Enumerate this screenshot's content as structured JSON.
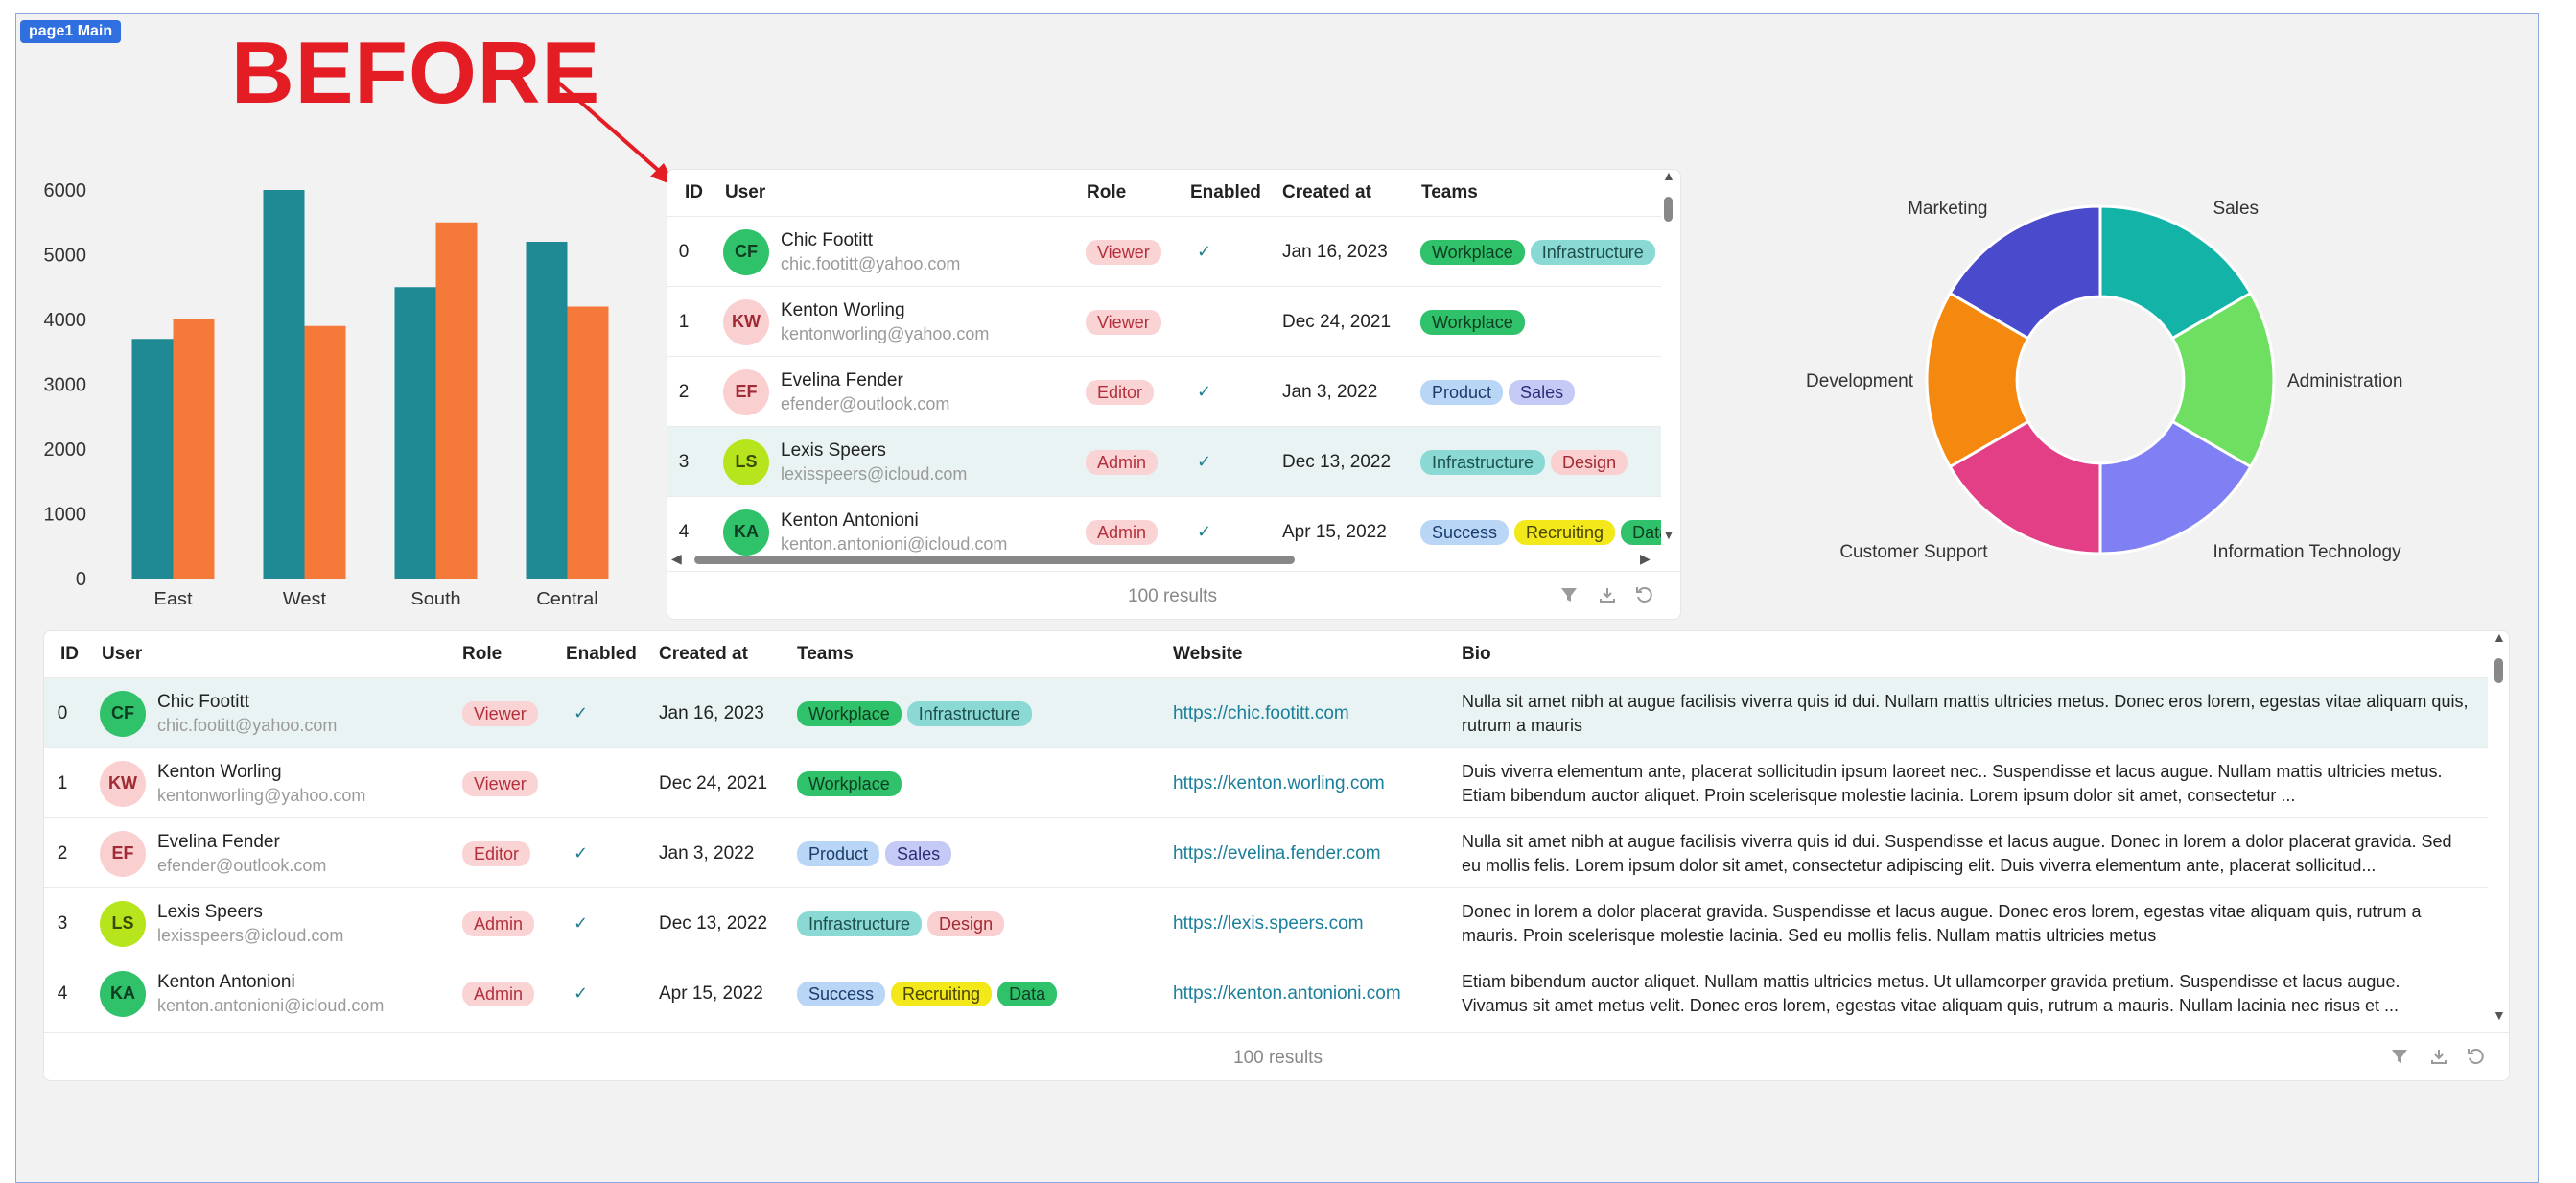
{
  "page_tag": "page1 Main",
  "annotation": {
    "text": "BEFORE",
    "color": "#e41c24"
  },
  "bar_chart": {
    "chart_data": {
      "type": "bar",
      "categories": [
        "East",
        "West",
        "South",
        "Central"
      ],
      "series": [
        {
          "values": [
            3700,
            6000,
            4500,
            5200
          ],
          "color": "#1f8a94"
        },
        {
          "values": [
            4000,
            3900,
            5500,
            4200
          ],
          "color": "#f57a3a"
        }
      ],
      "ylim": [
        0,
        6000
      ],
      "yticks": [
        0,
        1000,
        2000,
        3000,
        4000,
        5000,
        6000
      ]
    },
    "y_tick_labels": [
      "0",
      "1000",
      "2000",
      "3000",
      "4000",
      "5000",
      "6000"
    ]
  },
  "donut_chart": {
    "chart_data": {
      "type": "pie",
      "categories": [
        "Sales",
        "Administration",
        "Information Technology",
        "Customer Support",
        "Development",
        "Marketing"
      ],
      "values": [
        1,
        1,
        1,
        1,
        1,
        1
      ],
      "colors": [
        "#14b3a8",
        "#6fdf62",
        "#8080f4",
        "#e33f86",
        "#f5880f",
        "#4a4acc"
      ],
      "hole": 0.48
    }
  },
  "small_grid": {
    "headers": {
      "id": "ID",
      "user": "User",
      "role": "Role",
      "enabled": "Enabled",
      "created": "Created at",
      "teams": "Teams"
    },
    "footer": "100 results"
  },
  "large_grid": {
    "headers": {
      "id": "ID",
      "user": "User",
      "role": "Role",
      "enabled": "Enabled",
      "created": "Created at",
      "teams": "Teams",
      "website": "Website",
      "bio": "Bio"
    },
    "footer": "100 results"
  },
  "rows": [
    {
      "id": "0",
      "initials": "CF",
      "avatar_bg": "#2fc26a",
      "avatar_fg": "#0f3d22",
      "name": "Chic Footitt",
      "email": "chic.footitt@yahoo.com",
      "role": "Viewer",
      "enabled": true,
      "enabled_icon": "✓",
      "created": "Jan 16, 2023",
      "teams": [
        {
          "label": "Workplace",
          "bg": "#2fc26a",
          "fg": "#0f3d22"
        },
        {
          "label": "Infrastructure",
          "bg": "#8ad9d5",
          "fg": "#1d4f4c"
        }
      ],
      "website": "https://chic.footitt.com",
      "bio": "Nulla sit amet nibh at augue facilisis viverra quis id dui. Nullam mattis ultricies metus. Donec eros lorem, egestas vitae aliquam quis, rutrum a mauris"
    },
    {
      "id": "1",
      "initials": "KW",
      "avatar_bg": "#f9cfd0",
      "avatar_fg": "#a12b35",
      "name": "Kenton Worling",
      "email": "kentonworling@yahoo.com",
      "role": "Viewer",
      "enabled": false,
      "enabled_icon": "",
      "created": "Dec 24, 2021",
      "teams": [
        {
          "label": "Workplace",
          "bg": "#2fc26a",
          "fg": "#0f3d22"
        }
      ],
      "website": "https://kenton.worling.com",
      "bio": "Duis viverra elementum ante, placerat sollicitudin ipsum laoreet nec.. Suspendisse et lacus augue. Nullam mattis ultricies metus. Etiam bibendum auctor aliquet. Proin scelerisque molestie lacinia. Lorem ipsum dolor sit amet, consectetur ..."
    },
    {
      "id": "2",
      "initials": "EF",
      "avatar_bg": "#f9cfd0",
      "avatar_fg": "#a12b35",
      "name": "Evelina Fender",
      "email": "efender@outlook.com",
      "role": "Editor",
      "enabled": true,
      "enabled_icon": "✓",
      "created": "Jan 3, 2022",
      "teams": [
        {
          "label": "Product",
          "bg": "#b9d6f7",
          "fg": "#1c3d6b"
        },
        {
          "label": "Sales",
          "bg": "#c5c9f5",
          "fg": "#2a2f78"
        }
      ],
      "website": "https://evelina.fender.com",
      "bio": "Nulla sit amet nibh at augue facilisis viverra quis id dui. Suspendisse et lacus augue. Donec in lorem a dolor placerat gravida. Sed eu mollis felis. Lorem ipsum dolor sit amet, consectetur adipiscing elit. Duis viverra elementum ante, placerat sollicitud..."
    },
    {
      "id": "3",
      "initials": "LS",
      "avatar_bg": "#b6e51d",
      "avatar_fg": "#3b4a05",
      "name": "Lexis Speers",
      "email": "lexisspeers@icloud.com",
      "role": "Admin",
      "enabled": true,
      "enabled_icon": "✓",
      "created": "Dec 13, 2022",
      "teams": [
        {
          "label": "Infrastructure",
          "bg": "#8ad9d5",
          "fg": "#1d4f4c"
        },
        {
          "label": "Design",
          "bg": "#f9cfd0",
          "fg": "#a12b35"
        }
      ],
      "website": "https://lexis.speers.com",
      "bio": "Donec in lorem a dolor placerat gravida. Suspendisse et lacus augue. Donec eros lorem, egestas vitae aliquam quis, rutrum a mauris. Proin scelerisque molestie lacinia. Sed eu mollis felis. Nullam mattis ultricies metus"
    },
    {
      "id": "4",
      "initials": "KA",
      "avatar_bg": "#2fc26a",
      "avatar_fg": "#0f3d22",
      "name": "Kenton Antonioni",
      "email": "kenton.antonioni@icloud.com",
      "role": "Admin",
      "enabled": true,
      "enabled_icon": "✓",
      "created": "Apr 15, 2022",
      "teams": [
        {
          "label": "Success",
          "bg": "#b9d6f7",
          "fg": "#1c3d6b"
        },
        {
          "label": "Recruiting",
          "bg": "#f3e81a",
          "fg": "#4a4500"
        },
        {
          "label": "Data",
          "bg": "#2fc26a",
          "fg": "#0f3d22"
        }
      ],
      "website": "https://kenton.antonioni.com",
      "bio": "Etiam bibendum auctor aliquet. Nullam mattis ultricies metus. Ut ullamcorper gravida pretium. Suspendisse et lacus augue. Vivamus sit amet metus velit. Donec eros lorem, egestas vitae aliquam quis, rutrum a mauris. Nullam lacinia nec risus et ..."
    }
  ],
  "role_style": {
    "bg": "#fad3d4",
    "fg": "#b3303b"
  },
  "icons": {
    "filter": "filter-icon",
    "download": "download-icon",
    "reset": "reset-icon"
  }
}
